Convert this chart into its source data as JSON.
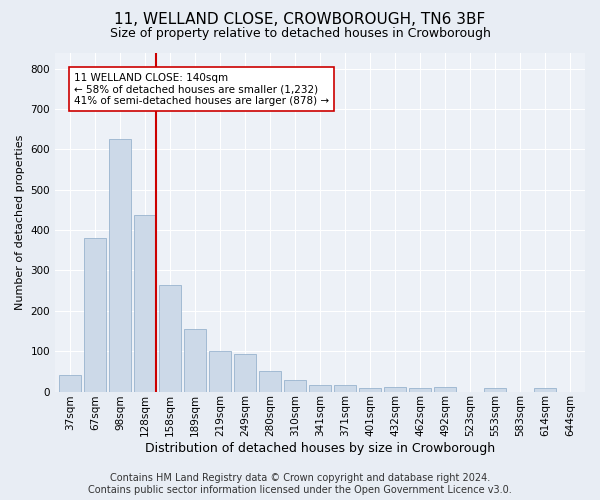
{
  "title": "11, WELLAND CLOSE, CROWBOROUGH, TN6 3BF",
  "subtitle": "Size of property relative to detached houses in Crowborough",
  "xlabel": "Distribution of detached houses by size in Crowborough",
  "ylabel": "Number of detached properties",
  "categories": [
    "37sqm",
    "67sqm",
    "98sqm",
    "128sqm",
    "158sqm",
    "189sqm",
    "219sqm",
    "249sqm",
    "280sqm",
    "310sqm",
    "341sqm",
    "371sqm",
    "401sqm",
    "432sqm",
    "462sqm",
    "492sqm",
    "523sqm",
    "553sqm",
    "583sqm",
    "614sqm",
    "644sqm"
  ],
  "values": [
    42,
    380,
    625,
    437,
    265,
    155,
    100,
    94,
    52,
    28,
    17,
    15,
    10,
    11,
    10,
    11,
    0,
    9,
    0,
    8,
    0
  ],
  "bar_color": "#ccd9e8",
  "bar_edge_color": "#8baac8",
  "vline_color": "#cc0000",
  "annotation_text": "11 WELLAND CLOSE: 140sqm\n← 58% of detached houses are smaller (1,232)\n41% of semi-detached houses are larger (878) →",
  "annotation_box_color": "#ffffff",
  "annotation_box_edge_color": "#cc0000",
  "ylim": [
    0,
    840
  ],
  "yticks": [
    0,
    100,
    200,
    300,
    400,
    500,
    600,
    700,
    800
  ],
  "footer": "Contains HM Land Registry data © Crown copyright and database right 2024.\nContains public sector information licensed under the Open Government Licence v3.0.",
  "bg_color": "#e8edf4",
  "plot_bg_color": "#edf1f7",
  "grid_color": "#ffffff",
  "title_fontsize": 11,
  "subtitle_fontsize": 9,
  "ylabel_fontsize": 8,
  "xlabel_fontsize": 9,
  "footer_fontsize": 7,
  "tick_fontsize": 7.5,
  "ann_fontsize": 7.5,
  "vline_x_index": 3
}
